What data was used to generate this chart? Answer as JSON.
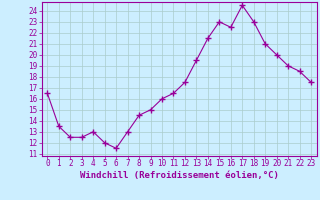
{
  "x": [
    0,
    1,
    2,
    3,
    4,
    5,
    6,
    7,
    8,
    9,
    10,
    11,
    12,
    13,
    14,
    15,
    16,
    17,
    18,
    19,
    20,
    21,
    22,
    23
  ],
  "y": [
    16.5,
    13.5,
    12.5,
    12.5,
    13.0,
    12.0,
    11.5,
    13.0,
    14.5,
    15.0,
    16.0,
    16.5,
    17.5,
    19.5,
    21.5,
    23.0,
    22.5,
    24.5,
    23.0,
    21.0,
    20.0,
    19.0,
    18.5,
    17.5
  ],
  "line_color": "#990099",
  "marker": "+",
  "marker_size": 4,
  "bg_color": "#cceeff",
  "grid_color": "#aacccc",
  "xlabel": "Windchill (Refroidissement éolien,°C)",
  "ylabel_ticks": [
    11,
    12,
    13,
    14,
    15,
    16,
    17,
    18,
    19,
    20,
    21,
    22,
    23,
    24
  ],
  "xtick_labels": [
    "0",
    "1",
    "2",
    "3",
    "4",
    "5",
    "6",
    "7",
    "8",
    "9",
    "10",
    "11",
    "12",
    "13",
    "14",
    "15",
    "16",
    "17",
    "18",
    "19",
    "20",
    "21",
    "22",
    "23"
  ],
  "ylim": [
    10.8,
    24.8
  ],
  "xlim": [
    -0.5,
    23.5
  ],
  "tick_fontsize": 5.5,
  "label_fontsize": 6.5
}
